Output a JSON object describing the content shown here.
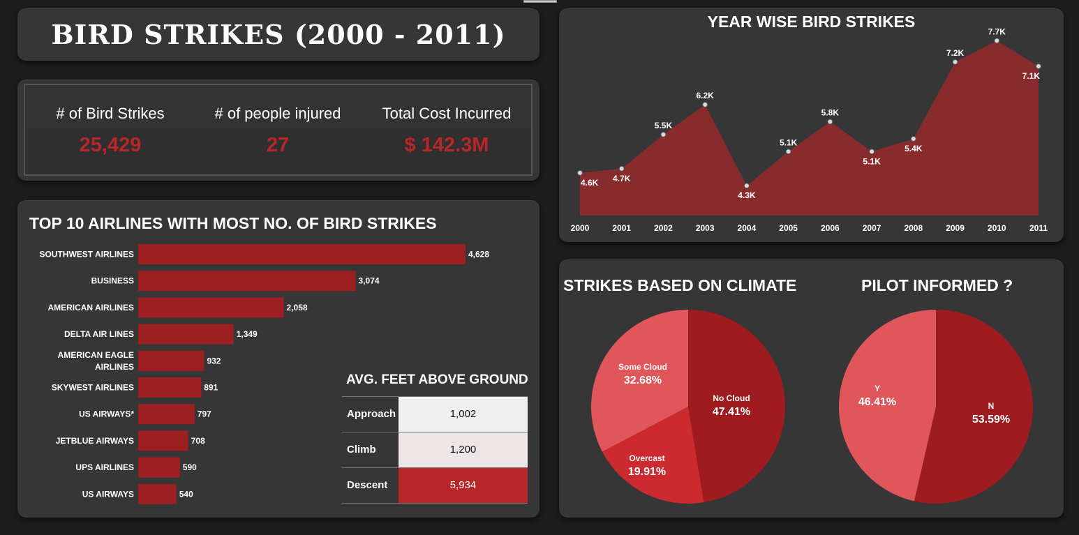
{
  "header": {
    "title": "BIRD STRIKES (2000 - 2011)"
  },
  "kpis": [
    {
      "label": "# of Bird Strikes",
      "value": "25,429"
    },
    {
      "label": "# of people injured",
      "value": "27"
    },
    {
      "label": "Total Cost Incurred",
      "value": "$ 142.3M"
    }
  ],
  "colors": {
    "accent_red": "#b8262a",
    "bar_red": "#9c1f22",
    "area_red": "#872b2c",
    "pie_dark": "#9e1c20",
    "pie_mid": "#cc2a2e",
    "pie_light": "#e0565a",
    "table_light": "#efefef",
    "table_mid": "#ede6e6"
  },
  "airlines": {
    "title": "TOP 10 AIRLINES WITH MOST NO. OF BIRD STRIKES"
  },
  "feet": {
    "title": "AVG. FEET ABOVE GROUND",
    "rows": [
      {
        "phase": "Approach",
        "value": "1,002",
        "value_num": 1002
      },
      {
        "phase": "Climb",
        "value": "1,200",
        "value_num": 1200
      },
      {
        "phase": "Descent",
        "value": "5,934",
        "value_num": 5934
      }
    ]
  },
  "year": {
    "title": "YEAR WISE BIRD STRIKES"
  },
  "climate": {
    "title": "STRIKES BASED ON CLIMATE"
  },
  "pilot": {
    "title": "PILOT INFORMED ?"
  },
  "chart_data": [
    {
      "type": "bar",
      "orientation": "horizontal",
      "title": "TOP 10 AIRLINES WITH MOST NO. OF BIRD STRIKES",
      "categories": [
        "SOUTHWEST AIRLINES",
        "BUSINESS",
        "AMERICAN AIRLINES",
        "DELTA AIR LINES",
        "AMERICAN EAGLE AIRLINES",
        "SKYWEST AIRLINES",
        "US AIRWAYS*",
        "JETBLUE AIRWAYS",
        "UPS AIRLINES",
        "US AIRWAYS"
      ],
      "values": [
        4628,
        3074,
        2058,
        1349,
        932,
        891,
        797,
        708,
        590,
        540
      ],
      "labels": [
        "4,628",
        "3,074",
        "2,058",
        "1,349",
        "932",
        "891",
        "797",
        "708",
        "590",
        "540"
      ]
    },
    {
      "type": "area",
      "title": "YEAR WISE BIRD STRIKES",
      "x": [
        "2000",
        "2001",
        "2002",
        "2003",
        "2004",
        "2005",
        "2006",
        "2007",
        "2008",
        "2009",
        "2010",
        "2011"
      ],
      "values": [
        4.6,
        4.7,
        5.5,
        6.2,
        4.3,
        5.1,
        5.8,
        5.1,
        5.4,
        7.2,
        7.7,
        7.1
      ],
      "labels": [
        "4.6K",
        "4.7K",
        "5.5K",
        "6.2K",
        "4.3K",
        "5.1K",
        "5.8K",
        "5.1K",
        "5.4K",
        "7.2K",
        "7.7K",
        "7.1K"
      ],
      "label_side": [
        "below",
        "below",
        "above",
        "above",
        "below",
        "above",
        "above",
        "below",
        "below",
        "above",
        "above",
        "below"
      ],
      "ylim": [
        3.6,
        8.0
      ]
    },
    {
      "type": "pie",
      "title": "STRIKES BASED ON CLIMATE",
      "slices": [
        {
          "name": "No Cloud",
          "value": 47.41,
          "label": "47.41%",
          "color": "#9e1c20"
        },
        {
          "name": "Overcast",
          "value": 19.91,
          "label": "19.91%",
          "color": "#cc2a2e"
        },
        {
          "name": "Some Cloud",
          "value": 32.68,
          "label": "32.68%",
          "color": "#e0565a"
        }
      ]
    },
    {
      "type": "pie",
      "title": "PILOT INFORMED ?",
      "slices": [
        {
          "name": "N",
          "value": 53.59,
          "label": "53.59%",
          "color": "#9e1c20"
        },
        {
          "name": "Y",
          "value": 46.41,
          "label": "46.41%",
          "color": "#e0565a"
        }
      ]
    }
  ]
}
